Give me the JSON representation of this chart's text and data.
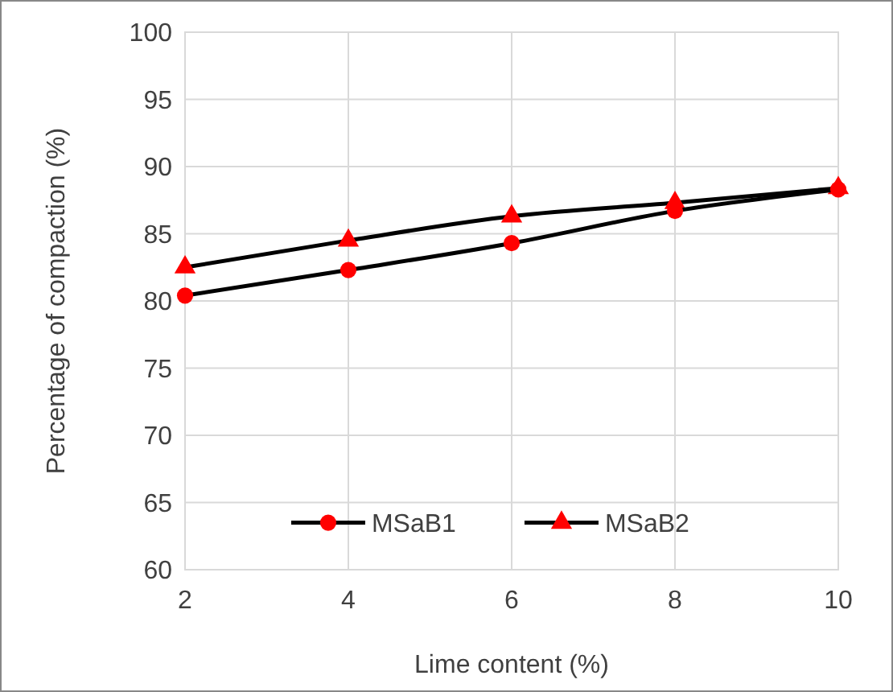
{
  "chart_data": {
    "type": "line",
    "xlabel": "Lime content (%)",
    "ylabel": "Percentage of compaction (%)",
    "x": [
      2,
      4,
      6,
      8,
      10
    ],
    "series": [
      {
        "name": "MSaB1",
        "color": "#ff0000",
        "marker": "circle",
        "values": [
          80.4,
          82.3,
          84.3,
          86.7,
          88.3
        ]
      },
      {
        "name": "MSaB2",
        "color": "#ff0000",
        "marker": "triangle",
        "values": [
          82.5,
          84.5,
          86.3,
          87.3,
          88.4
        ]
      }
    ],
    "xlim": [
      2,
      10
    ],
    "xticks": [
      2,
      4,
      6,
      8,
      10
    ],
    "ylim": [
      60,
      100
    ],
    "yticks": [
      60,
      65,
      70,
      75,
      80,
      85,
      90,
      95,
      100
    ],
    "grid": true,
    "legend": "bottom",
    "line_style": "solid"
  }
}
